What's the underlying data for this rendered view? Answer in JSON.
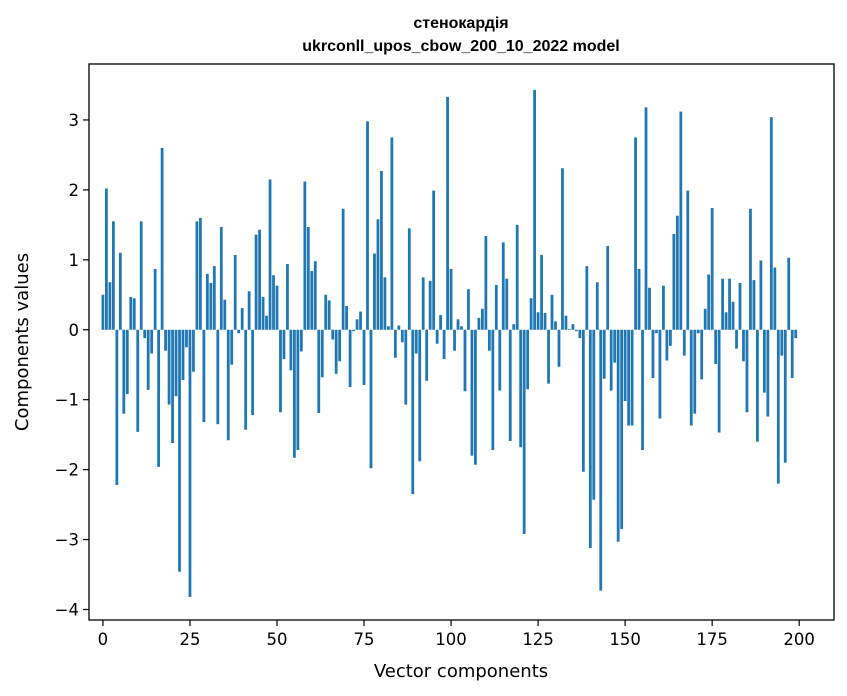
{
  "chart_data": {
    "type": "bar",
    "title_line1": "стенокардія",
    "title_line2": "ukrconll_upos_cbow_200_10_2022 model",
    "xlabel": "Vector components",
    "ylabel": "Components values",
    "xlim": [
      -4,
      210
    ],
    "ylim": [
      -4.15,
      3.8
    ],
    "xticks": [
      0,
      25,
      50,
      75,
      100,
      125,
      150,
      175,
      200
    ],
    "xtick_labels": [
      "0",
      "25",
      "50",
      "75",
      "100",
      "125",
      "150",
      "175",
      "200"
    ],
    "yticks": [
      -4,
      -3,
      -2,
      -1,
      0,
      1,
      2,
      3
    ],
    "ytick_labels": [
      "−4",
      "−3",
      "−2",
      "−1",
      "0",
      "1",
      "2",
      "3"
    ],
    "bar_color": "#1f77b4",
    "values": [
      0.5,
      2.02,
      0.68,
      1.55,
      -2.22,
      1.1,
      -1.2,
      -0.92,
      0.47,
      0.45,
      -1.46,
      1.55,
      -0.12,
      -0.86,
      -0.34,
      0.87,
      -1.96,
      2.6,
      -0.3,
      -1.07,
      -1.62,
      -0.95,
      -3.46,
      -0.72,
      -0.25,
      -3.82,
      -0.6,
      1.55,
      1.6,
      -1.32,
      0.8,
      0.67,
      0.91,
      -1.35,
      1.47,
      0.43,
      -1.58,
      -0.5,
      1.07,
      -0.05,
      0.31,
      -1.43,
      0.55,
      -1.22,
      1.36,
      1.43,
      0.47,
      0.2,
      2.15,
      0.78,
      0.63,
      -1.18,
      -0.42,
      0.94,
      -0.58,
      -1.83,
      -1.72,
      -0.31,
      2.12,
      1.47,
      0.84,
      0.98,
      -1.19,
      -0.68,
      0.5,
      0.42,
      -0.14,
      -0.63,
      -0.45,
      1.73,
      0.34,
      -0.82,
      -0.02,
      0.15,
      0.26,
      -0.79,
      2.98,
      -1.98,
      1.09,
      1.58,
      2.27,
      0.75,
      0.05,
      2.75,
      -0.4,
      0.06,
      -0.18,
      -1.07,
      1.45,
      -2.35,
      -0.34,
      -1.88,
      0.75,
      -0.73,
      0.7,
      1.99,
      -0.2,
      0.21,
      -0.42,
      3.33,
      0.87,
      -0.3,
      0.15,
      0.05,
      -0.88,
      0.58,
      -1.8,
      -1.93,
      0.17,
      0.3,
      1.34,
      -0.3,
      -1.72,
      0.64,
      -0.87,
      1.25,
      0.73,
      -1.59,
      0.08,
      1.5,
      -1.68,
      -2.92,
      -0.85,
      0.45,
      3.43,
      0.25,
      1.07,
      0.24,
      -0.77,
      0.5,
      0.12,
      -0.53,
      2.31,
      0.2,
      0.01,
      0.08,
      -0.02,
      -0.12,
      -2.03,
      0.91,
      -3.12,
      -2.43,
      0.68,
      -3.73,
      -0.7,
      1.2,
      -0.87,
      -0.47,
      -3.03,
      -2.85,
      -1.02,
      -1.37,
      -1.37,
      2.75,
      0.87,
      -1.72,
      3.18,
      0.6,
      -0.69,
      -0.05,
      -1.27,
      0.63,
      -0.44,
      -0.23,
      1.37,
      1.63,
      3.12,
      -0.37,
      1.99,
      -1.37,
      -1.2,
      -0.05,
      -0.71,
      0.3,
      0.79,
      1.74,
      -0.49,
      -1.47,
      0.73,
      0.25,
      0.73,
      0.4,
      -0.27,
      0.67,
      -0.45,
      -1.18,
      1.73,
      0.71,
      -1.6,
      0.99,
      -0.9,
      -1.24,
      3.04,
      0.89,
      -2.2,
      -0.37,
      -1.9,
      1.03,
      -0.69,
      -0.12
    ]
  }
}
